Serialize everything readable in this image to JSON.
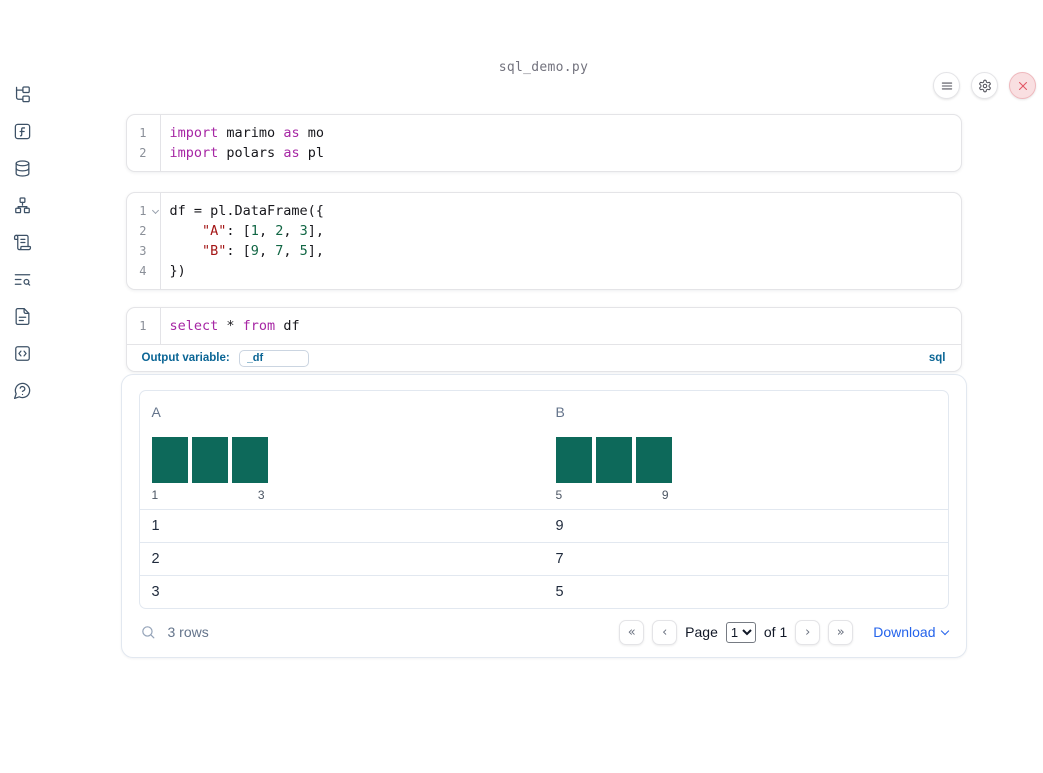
{
  "title": "sql_demo.py",
  "colors": {
    "accent_blue": "#2463eb",
    "label_blue": "#0a6595",
    "histogram_teal": "#0d695a",
    "keyword": "#a626a4",
    "string": "#a31515",
    "number": "#116644",
    "close_red": "#e25563",
    "sidebar_icon": "#3d5166"
  },
  "sidebar": {
    "items": [
      {
        "icon": "file-tree-icon"
      },
      {
        "icon": "function-icon"
      },
      {
        "icon": "database-icon"
      },
      {
        "icon": "dependency-graph-icon"
      },
      {
        "icon": "scroll-icon"
      },
      {
        "icon": "logs-search-icon"
      },
      {
        "icon": "document-icon"
      },
      {
        "icon": "snippets-code-icon"
      },
      {
        "icon": "help-icon"
      }
    ]
  },
  "topbar": {
    "buttons": [
      {
        "icon": "menu-icon"
      },
      {
        "icon": "settings-gear-icon"
      },
      {
        "icon": "close-x-icon"
      }
    ]
  },
  "cells": [
    {
      "lines": [
        {
          "num": "1",
          "tokens": [
            {
              "t": "kw",
              "v": "import "
            },
            {
              "t": "tx",
              "v": "marimo "
            },
            {
              "t": "kw",
              "v": "as "
            },
            {
              "t": "tx",
              "v": "mo"
            }
          ]
        },
        {
          "num": "2",
          "tokens": [
            {
              "t": "kw",
              "v": "import "
            },
            {
              "t": "tx",
              "v": "polars "
            },
            {
              "t": "kw",
              "v": "as "
            },
            {
              "t": "tx",
              "v": "pl"
            }
          ]
        }
      ]
    },
    {
      "lines": [
        {
          "num": "1",
          "fold": true,
          "tokens": [
            {
              "t": "tx",
              "v": "df = pl.DataFrame({"
            }
          ]
        },
        {
          "num": "2",
          "tokens": [
            {
              "t": "tx",
              "v": "    "
            },
            {
              "t": "st",
              "v": "\"A\""
            },
            {
              "t": "tx",
              "v": ": ["
            },
            {
              "t": "nu",
              "v": "1"
            },
            {
              "t": "tx",
              "v": ", "
            },
            {
              "t": "nu",
              "v": "2"
            },
            {
              "t": "tx",
              "v": ", "
            },
            {
              "t": "nu",
              "v": "3"
            },
            {
              "t": "tx",
              "v": "],"
            }
          ]
        },
        {
          "num": "3",
          "tokens": [
            {
              "t": "tx",
              "v": "    "
            },
            {
              "t": "st",
              "v": "\"B\""
            },
            {
              "t": "tx",
              "v": ": ["
            },
            {
              "t": "nu",
              "v": "9"
            },
            {
              "t": "tx",
              "v": ", "
            },
            {
              "t": "nu",
              "v": "7"
            },
            {
              "t": "tx",
              "v": ", "
            },
            {
              "t": "nu",
              "v": "5"
            },
            {
              "t": "tx",
              "v": "],"
            }
          ]
        },
        {
          "num": "4",
          "tokens": [
            {
              "t": "tx",
              "v": "})"
            }
          ]
        }
      ]
    },
    {
      "lines": [
        {
          "num": "1",
          "tokens": [
            {
              "t": "kw",
              "v": "select "
            },
            {
              "t": "tx",
              "v": "* "
            },
            {
              "t": "kw",
              "v": "from "
            },
            {
              "t": "tx",
              "v": "df"
            }
          ]
        }
      ]
    }
  ],
  "sql_cell": {
    "output_variable_label": "Output variable:",
    "output_variable_value": "_df",
    "language_badge": "sql"
  },
  "output": {
    "table": {
      "columns": [
        {
          "name": "A",
          "hist": {
            "values": [
              1,
              1,
              1
            ],
            "bin_labels": [
              "1",
              "3"
            ]
          }
        },
        {
          "name": "B",
          "hist": {
            "values": [
              1,
              1,
              1
            ],
            "bin_labels": [
              "5",
              "9"
            ]
          }
        }
      ],
      "rows": [
        [
          "1",
          "9"
        ],
        [
          "2",
          "7"
        ],
        [
          "3",
          "5"
        ]
      ]
    },
    "footer": {
      "row_count": "3 rows",
      "page_label": "Page",
      "page": "1",
      "of_label": "of 1",
      "first_icon": "«",
      "prev_icon": "‹",
      "next_icon": "›",
      "last_icon": "»",
      "download_label": "Download"
    }
  }
}
